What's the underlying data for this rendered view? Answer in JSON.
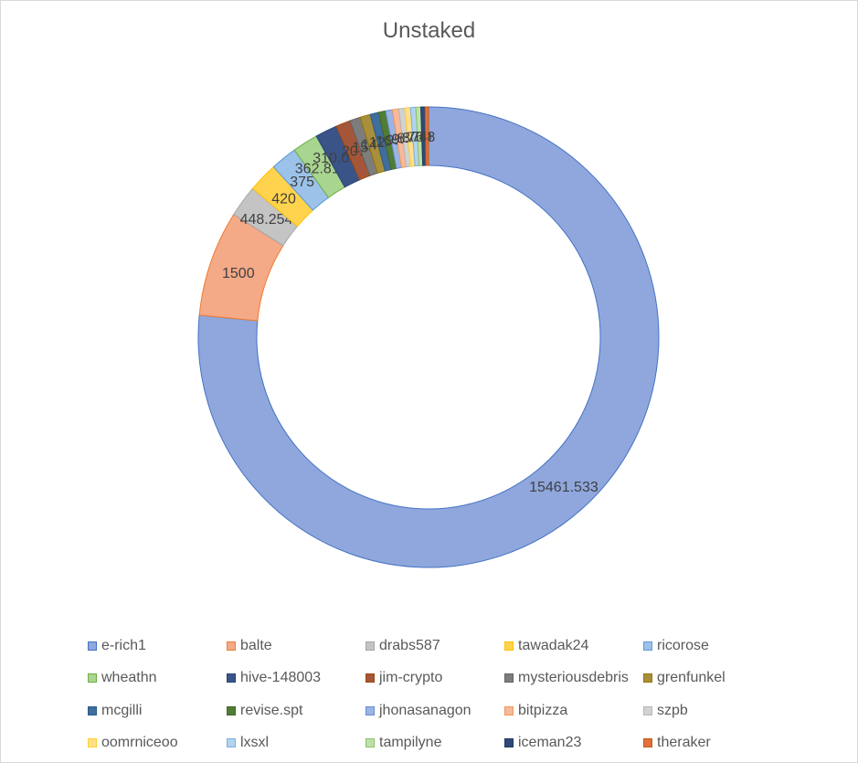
{
  "chart_data": {
    "type": "pie",
    "title": "Unstaked",
    "legend_position": "bottom",
    "categories": [
      "e-rich1",
      "balte",
      "drabs587",
      "tawadak24",
      "ricorose",
      "wheathn",
      "hive-148003",
      "jim-crypto",
      "mysteriousdebris",
      "grenfunkel",
      "mcgilli",
      "revise.spt",
      "jhonasanagon",
      "bitpizza",
      "szpb",
      "oomrniceoo",
      "lxsxl",
      "tampilyne",
      "iceman23",
      "theraker"
    ],
    "values": [
      15461.533,
      1500,
      448.254,
      420,
      375,
      362.811,
      310.094,
      207,
      150,
      147,
      120,
      100,
      95,
      90,
      85,
      80,
      75,
      70,
      60,
      48
    ],
    "data_labels": [
      "15461.533",
      "1500",
      "448.254",
      "420",
      "375",
      "362.811",
      "310.094",
      "207",
      "150",
      "147",
      "120",
      "100",
      "95",
      "90",
      "85",
      "80",
      "75",
      "70",
      "60",
      "48"
    ],
    "colors": [
      "#8fa7dc",
      "#f4a987",
      "#c4c4c4",
      "#ffd34d",
      "#9cc2ea",
      "#a8d58f",
      "#3b5488",
      "#a5563a",
      "#7d7d7d",
      "#a88f3c",
      "#3f6e9c",
      "#4f7d34",
      "#9ab4e4",
      "#f7b99a",
      "#d2d2d2",
      "#ffe08a",
      "#b3d3f0",
      "#bde2a8",
      "#2f4a7a",
      "#e0703f"
    ],
    "borders": [
      "#4472c4",
      "#ed7d31",
      "#a5a5a5",
      "#ffc000",
      "#5b9bd5",
      "#70ad47",
      "#264478",
      "#9e480e",
      "#636363",
      "#997300",
      "#255e91",
      "#43682b",
      "#698ed0",
      "#f1975a",
      "#b7b7b7",
      "#ffcd33",
      "#7cafdd",
      "#8cc168",
      "#203864",
      "#c55a11"
    ]
  }
}
